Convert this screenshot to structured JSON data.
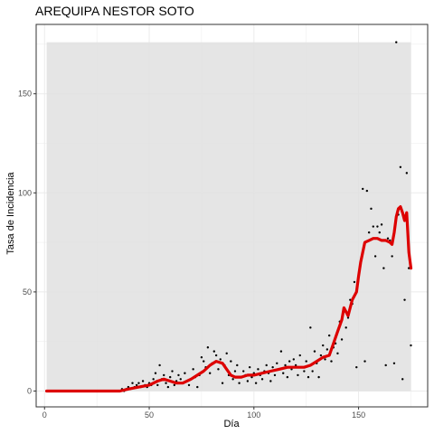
{
  "chart_data": {
    "type": "scatter",
    "title": "AREQUIPA NESTOR SOTO",
    "xlabel": "Día",
    "ylabel": "Tasa de Incidencia",
    "xlim": [
      -4,
      183
    ],
    "ylim": [
      -8,
      185
    ],
    "x_ticks": [
      0,
      50,
      100,
      150
    ],
    "y_ticks": [
      0,
      50,
      100,
      150
    ],
    "grid": true,
    "colors": {
      "panel_border": "#333333",
      "grid": "#ebebeb",
      "band": "#e0e0e0",
      "points": "#000000",
      "smooth_line": "#dd0000",
      "tick": "#4d4d4d"
    },
    "band": {
      "x_start": 1,
      "x_end": 175,
      "y_low": 0,
      "y_high": 176
    },
    "points": [
      [
        1,
        0
      ],
      [
        2,
        0
      ],
      [
        3,
        0
      ],
      [
        4,
        0
      ],
      [
        5,
        0
      ],
      [
        6,
        0
      ],
      [
        7,
        0
      ],
      [
        8,
        0
      ],
      [
        9,
        0
      ],
      [
        10,
        0
      ],
      [
        11,
        0
      ],
      [
        12,
        0
      ],
      [
        13,
        0
      ],
      [
        14,
        0
      ],
      [
        15,
        0
      ],
      [
        16,
        0
      ],
      [
        17,
        0
      ],
      [
        18,
        0
      ],
      [
        19,
        0
      ],
      [
        20,
        0
      ],
      [
        21,
        0
      ],
      [
        22,
        0
      ],
      [
        23,
        0
      ],
      [
        24,
        0
      ],
      [
        25,
        0
      ],
      [
        26,
        0
      ],
      [
        27,
        0
      ],
      [
        28,
        0
      ],
      [
        29,
        0
      ],
      [
        30,
        0
      ],
      [
        31,
        0
      ],
      [
        32,
        0
      ],
      [
        33,
        0
      ],
      [
        34,
        0
      ],
      [
        35,
        0
      ],
      [
        36,
        0
      ],
      [
        37,
        1
      ],
      [
        38,
        0
      ],
      [
        39,
        1
      ],
      [
        40,
        2
      ],
      [
        41,
        1
      ],
      [
        42,
        4
      ],
      [
        43,
        2
      ],
      [
        44,
        3
      ],
      [
        45,
        4
      ],
      [
        46,
        2
      ],
      [
        47,
        5
      ],
      [
        48,
        3
      ],
      [
        49,
        2
      ],
      [
        50,
        4
      ],
      [
        51,
        3
      ],
      [
        52,
        6
      ],
      [
        53,
        9
      ],
      [
        54,
        3
      ],
      [
        55,
        13
      ],
      [
        56,
        6
      ],
      [
        57,
        8
      ],
      [
        58,
        4
      ],
      [
        59,
        2
      ],
      [
        60,
        7
      ],
      [
        61,
        10
      ],
      [
        62,
        3
      ],
      [
        63,
        5
      ],
      [
        64,
        8
      ],
      [
        65,
        6
      ],
      [
        66,
        4
      ],
      [
        67,
        9
      ],
      [
        68,
        5
      ],
      [
        69,
        3
      ],
      [
        70,
        6
      ],
      [
        71,
        11
      ],
      [
        72,
        7
      ],
      [
        73,
        2
      ],
      [
        74,
        8
      ],
      [
        75,
        17
      ],
      [
        76,
        15
      ],
      [
        77,
        12
      ],
      [
        78,
        22
      ],
      [
        79,
        9
      ],
      [
        80,
        14
      ],
      [
        81,
        20
      ],
      [
        82,
        18
      ],
      [
        83,
        11
      ],
      [
        84,
        16
      ],
      [
        85,
        4
      ],
      [
        86,
        13
      ],
      [
        87,
        19
      ],
      [
        88,
        8
      ],
      [
        89,
        15
      ],
      [
        90,
        6
      ],
      [
        91,
        10
      ],
      [
        92,
        13
      ],
      [
        93,
        4
      ],
      [
        94,
        7
      ],
      [
        95,
        10
      ],
      [
        96,
        8
      ],
      [
        97,
        5
      ],
      [
        98,
        12
      ],
      [
        99,
        7
      ],
      [
        100,
        9
      ],
      [
        101,
        4
      ],
      [
        102,
        11
      ],
      [
        103,
        8
      ],
      [
        104,
        6
      ],
      [
        105,
        10
      ],
      [
        106,
        13
      ],
      [
        107,
        9
      ],
      [
        108,
        5
      ],
      [
        109,
        12
      ],
      [
        110,
        8
      ],
      [
        111,
        14
      ],
      [
        112,
        11
      ],
      [
        113,
        20
      ],
      [
        114,
        9
      ],
      [
        115,
        13
      ],
      [
        116,
        7
      ],
      [
        117,
        15
      ],
      [
        118,
        11
      ],
      [
        119,
        16
      ],
      [
        120,
        13
      ],
      [
        121,
        8
      ],
      [
        122,
        18
      ],
      [
        123,
        12
      ],
      [
        124,
        10
      ],
      [
        125,
        15
      ],
      [
        126,
        7
      ],
      [
        127,
        32
      ],
      [
        128,
        10
      ],
      [
        129,
        20
      ],
      [
        130,
        14
      ],
      [
        131,
        7
      ],
      [
        132,
        18
      ],
      [
        133,
        23
      ],
      [
        134,
        16
      ],
      [
        135,
        21
      ],
      [
        136,
        28
      ],
      [
        137,
        15
      ],
      [
        138,
        22
      ],
      [
        139,
        24
      ],
      [
        140,
        19
      ],
      [
        141,
        35
      ],
      [
        142,
        26
      ],
      [
        143,
        40
      ],
      [
        144,
        32
      ],
      [
        145,
        37
      ],
      [
        146,
        46
      ],
      [
        147,
        44
      ],
      [
        148,
        55
      ],
      [
        149,
        12
      ],
      [
        150,
        58
      ],
      [
        151,
        65
      ],
      [
        152,
        102
      ],
      [
        153,
        15
      ],
      [
        154,
        101
      ],
      [
        155,
        80
      ],
      [
        156,
        92
      ],
      [
        157,
        83
      ],
      [
        158,
        68
      ],
      [
        159,
        83
      ],
      [
        160,
        80
      ],
      [
        161,
        84
      ],
      [
        162,
        62
      ],
      [
        163,
        13
      ],
      [
        164,
        77
      ],
      [
        165,
        76
      ],
      [
        166,
        68
      ],
      [
        167,
        14
      ],
      [
        168,
        176
      ],
      [
        169,
        89
      ],
      [
        170,
        113
      ],
      [
        171,
        6
      ],
      [
        172,
        46
      ],
      [
        173,
        110
      ],
      [
        174,
        62
      ],
      [
        175,
        23
      ]
    ],
    "smooth_line": [
      [
        1,
        0
      ],
      [
        10,
        0
      ],
      [
        20,
        0
      ],
      [
        30,
        0
      ],
      [
        36,
        0
      ],
      [
        40,
        1
      ],
      [
        45,
        2
      ],
      [
        50,
        3
      ],
      [
        54,
        5
      ],
      [
        57,
        6
      ],
      [
        60,
        5
      ],
      [
        63,
        4
      ],
      [
        66,
        4
      ],
      [
        70,
        6
      ],
      [
        73,
        8
      ],
      [
        76,
        10
      ],
      [
        79,
        13
      ],
      [
        82,
        15
      ],
      [
        85,
        14
      ],
      [
        87,
        11
      ],
      [
        89,
        8
      ],
      [
        91,
        7
      ],
      [
        94,
        7
      ],
      [
        97,
        8
      ],
      [
        100,
        8
      ],
      [
        104,
        9
      ],
      [
        108,
        10
      ],
      [
        112,
        11
      ],
      [
        116,
        12
      ],
      [
        120,
        12
      ],
      [
        124,
        12
      ],
      [
        127,
        13
      ],
      [
        130,
        15
      ],
      [
        133,
        17
      ],
      [
        136,
        18
      ],
      [
        138,
        24
      ],
      [
        140,
        30
      ],
      [
        142,
        36
      ],
      [
        143,
        42
      ],
      [
        144,
        40
      ],
      [
        145,
        38
      ],
      [
        146,
        42
      ],
      [
        147,
        46
      ],
      [
        149,
        50
      ],
      [
        150,
        58
      ],
      [
        151,
        65
      ],
      [
        152,
        70
      ],
      [
        153,
        75
      ],
      [
        155,
        76
      ],
      [
        157,
        77
      ],
      [
        159,
        77
      ],
      [
        161,
        76
      ],
      [
        163,
        76
      ],
      [
        165,
        75
      ],
      [
        166,
        74
      ],
      [
        167,
        80
      ],
      [
        168,
        88
      ],
      [
        169,
        92
      ],
      [
        170,
        93
      ],
      [
        171,
        90
      ],
      [
        172,
        86
      ],
      [
        173,
        90
      ],
      [
        174,
        70
      ],
      [
        175,
        62
      ]
    ]
  }
}
